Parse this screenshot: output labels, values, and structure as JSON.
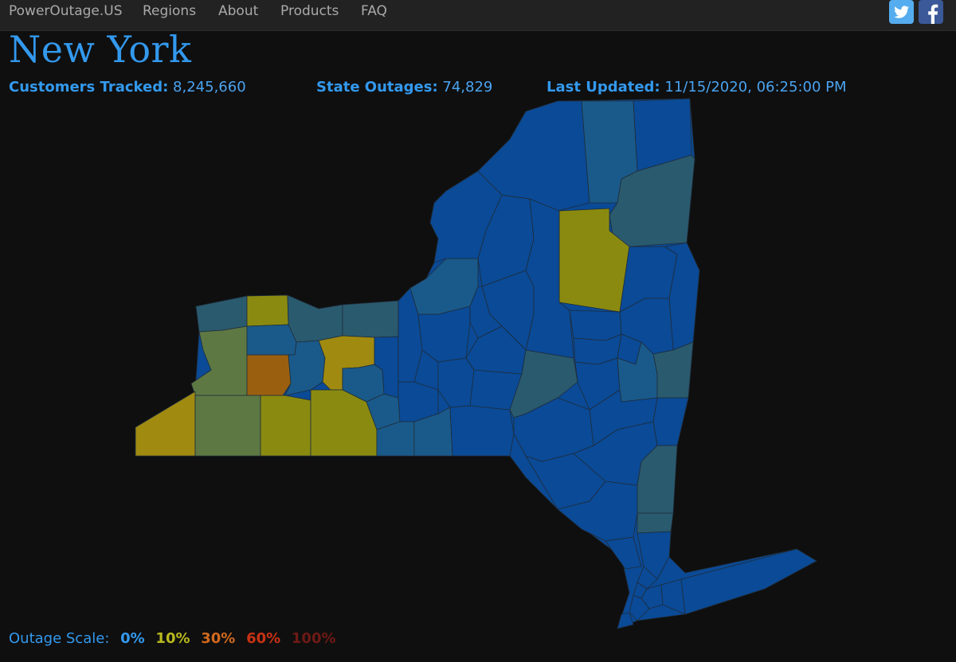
{
  "nav": {
    "brand": "PowerOutage.US",
    "items": [
      {
        "label": "Regions"
      },
      {
        "label": "About"
      },
      {
        "label": "Products"
      },
      {
        "label": "FAQ"
      }
    ],
    "social": [
      {
        "icon": "twitter-icon",
        "color": "#55acee"
      },
      {
        "icon": "facebook-icon",
        "color": "#3b5998"
      }
    ]
  },
  "page": {
    "title": "New York"
  },
  "stats": {
    "customers_tracked": {
      "label": "Customers Tracked:",
      "value": "8,245,660"
    },
    "state_outages": {
      "label": "State Outages:",
      "value": "74,829"
    },
    "last_updated": {
      "label": "Last Updated:",
      "value": "11/15/2020, 06:25:00 PM"
    }
  },
  "map": {
    "region": "New York",
    "palette": {
      "none": "#0a4a96",
      "very_low": "#1a5a8a",
      "low": "#2a5a6e",
      "mild": "#5e7843",
      "moderate": "#8a8a10",
      "elevated": "#a08a10",
      "high": "#9a6010",
      "stroke": "#1f2c3a"
    }
  },
  "legend": {
    "label": "Outage Scale:",
    "steps": [
      {
        "text": "0%",
        "color": "#3399ee"
      },
      {
        "text": "10%",
        "color": "#b9b91e"
      },
      {
        "text": "30%",
        "color": "#d2691e"
      },
      {
        "text": "60%",
        "color": "#c83214"
      },
      {
        "text": "100%",
        "color": "#6e1a14"
      }
    ]
  }
}
